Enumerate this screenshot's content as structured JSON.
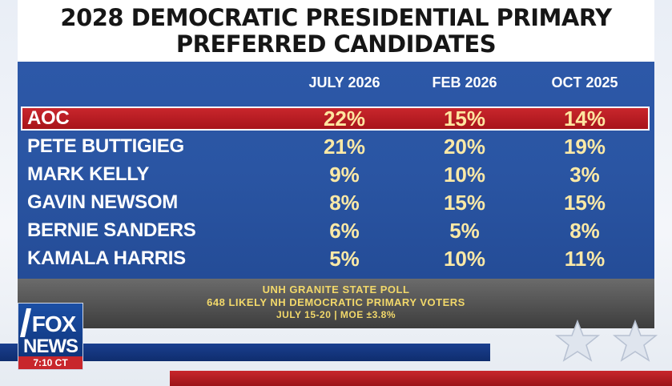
{
  "header": {
    "title_line1": "2028 DEMOCRATIC PRESIDENTIAL PRIMARY",
    "title_line2": "PREFERRED CANDIDATES"
  },
  "chart_data": {
    "type": "table",
    "title": "2028 DEMOCRATIC PRESIDENTIAL PRIMARY PREFERRED CANDIDATES",
    "columns": [
      "JULY 2026",
      "FEB 2026",
      "OCT 2025"
    ],
    "rows": [
      {
        "candidate": "AOC",
        "values": [
          "22%",
          "15%",
          "14%"
        ],
        "highlight": true
      },
      {
        "candidate": "PETE BUTTIGIEG",
        "values": [
          "21%",
          "20%",
          "19%"
        ],
        "highlight": false
      },
      {
        "candidate": "MARK KELLY",
        "values": [
          "9%",
          "10%",
          "3%"
        ],
        "highlight": false
      },
      {
        "candidate": "GAVIN NEWSOM",
        "values": [
          "8%",
          "15%",
          "15%"
        ],
        "highlight": false
      },
      {
        "candidate": "BERNIE SANDERS",
        "values": [
          "6%",
          "5%",
          "8%"
        ],
        "highlight": false
      },
      {
        "candidate": "KAMALA HARRIS",
        "values": [
          "5%",
          "10%",
          "11%"
        ],
        "highlight": false
      }
    ]
  },
  "footer": {
    "line1": "UNH GRANITE STATE POLL",
    "line2": "648 LIKELY NH DEMOCRATIC PRIMARY VOTERS",
    "line3": "JULY 15-20 | MOE ±3.8%"
  },
  "logo": {
    "word1": "FOX",
    "word2": "NEWS",
    "time": "7:10 CT"
  },
  "colors": {
    "panel_blue": "#2a55a3",
    "highlight_red": "#b81c22",
    "value_yellow": "#fbe9a6",
    "footer_text": "#f2d86a"
  }
}
